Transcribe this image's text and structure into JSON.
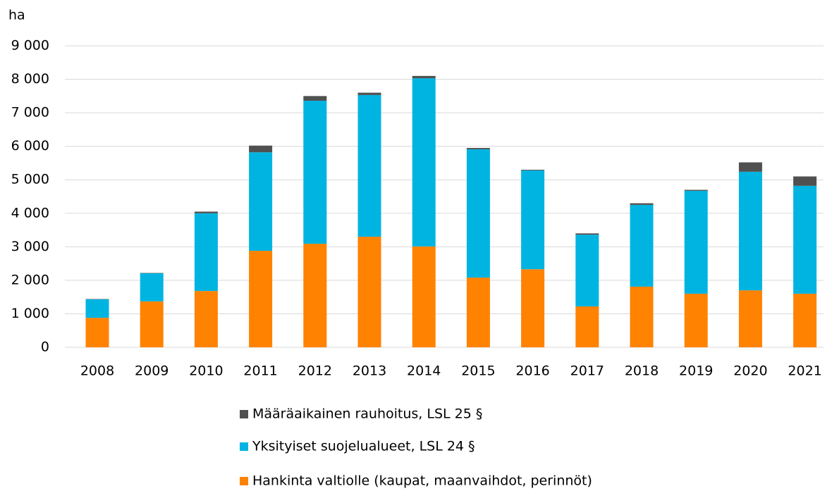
{
  "chart_data": {
    "type": "stacked_bar",
    "y_axis_label": "ha",
    "categories": [
      "2008",
      "2009",
      "2010",
      "2011",
      "2012",
      "2013",
      "2014",
      "2015",
      "2016",
      "2017",
      "2018",
      "2019",
      "2020",
      "2021"
    ],
    "series": [
      {
        "name": "Hankinta valtiolle (kaupat, maanvaihdot, perinnöt)",
        "color": "#ff8200",
        "values": [
          880,
          1370,
          1680,
          2880,
          3090,
          3300,
          3010,
          2080,
          2330,
          1220,
          1810,
          1600,
          1700,
          1600
        ]
      },
      {
        "name": "Yksityiset suojelualueet, LSL 24 §",
        "color": "#00b4e1",
        "values": [
          550,
          840,
          2320,
          2940,
          4270,
          4230,
          5020,
          3830,
          2950,
          2140,
          2440,
          3070,
          3540,
          3220
        ]
      },
      {
        "name": "Määräaikainen rauhoitus, LSL 25 §",
        "color": "#505050",
        "values": [
          10,
          10,
          50,
          200,
          140,
          70,
          70,
          40,
          20,
          40,
          50,
          30,
          280,
          280
        ]
      }
    ],
    "ylim": [
      0,
      9000
    ],
    "yticks": [
      0,
      {
        "value": 1000,
        "label": "1 000"
      },
      {
        "value": 2000,
        "label": "2 000"
      },
      {
        "value": 3000,
        "label": "3 000"
      },
      {
        "value": 4000,
        "label": "4 000"
      },
      {
        "value": 5000,
        "label": "5 000"
      },
      {
        "value": 6000,
        "label": "6 000"
      },
      {
        "value": 7000,
        "label": "7 000"
      },
      {
        "value": 8000,
        "label": "8 000"
      },
      {
        "value": 9000,
        "label": "9 000"
      }
    ],
    "grid": true,
    "legend": "bottom"
  }
}
